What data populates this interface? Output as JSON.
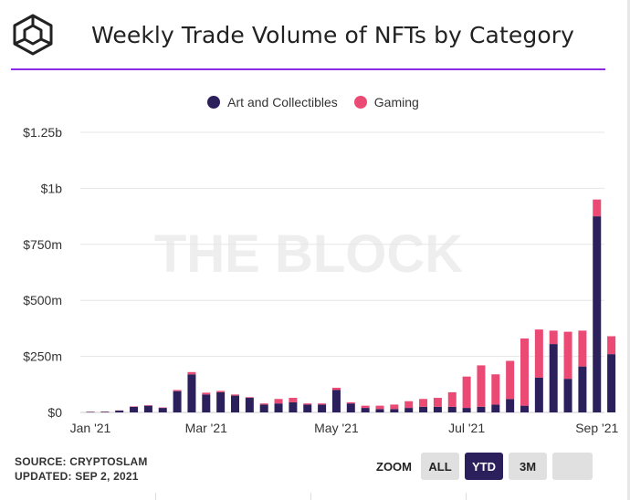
{
  "header": {
    "title": "Weekly Trade Volume of NFTs by Category"
  },
  "colors": {
    "art": "#2b1f5c",
    "gaming": "#ea4a74",
    "rule": "#8a2be2"
  },
  "legend": [
    {
      "label": "Art and Collectibles",
      "color": "#2b1f5c"
    },
    {
      "label": "Gaming",
      "color": "#ea4a74"
    }
  ],
  "watermark": "THE BLOCK",
  "footer": {
    "source": "SOURCE: CRYPTOSLAM",
    "updated": "UPDATED: SEP 2, 2021"
  },
  "zoom": {
    "label": "ZOOM",
    "buttons": [
      {
        "label": "ALL",
        "active": false
      },
      {
        "label": "YTD",
        "active": true
      },
      {
        "label": "3M",
        "active": false
      },
      {
        "label": "",
        "active": false
      }
    ]
  },
  "chart_data": {
    "type": "bar",
    "stacked": true,
    "ylim": [
      0,
      1250
    ],
    "y_ticks": [
      {
        "value": 0,
        "label": "$0"
      },
      {
        "value": 250,
        "label": "$250m"
      },
      {
        "value": 500,
        "label": "$500m"
      },
      {
        "value": 750,
        "label": "$750m"
      },
      {
        "value": 1000,
        "label": "$1b"
      },
      {
        "value": 1250,
        "label": "$1.25b"
      }
    ],
    "x_ticks": [
      {
        "index": 0,
        "label": "Jan '21"
      },
      {
        "index": 8,
        "label": "Mar '21"
      },
      {
        "index": 17,
        "label": "May '21"
      },
      {
        "index": 26,
        "label": "Jul '21"
      },
      {
        "index": 35,
        "label": "Sep '21"
      }
    ],
    "categories": [
      "2021-01-01",
      "2021-01-08",
      "2021-01-15",
      "2021-01-22",
      "2021-01-29",
      "2021-02-05",
      "2021-02-12",
      "2021-02-19",
      "2021-02-26",
      "2021-03-05",
      "2021-03-12",
      "2021-03-19",
      "2021-03-26",
      "2021-04-02",
      "2021-04-09",
      "2021-04-16",
      "2021-04-23",
      "2021-04-30",
      "2021-05-07",
      "2021-05-14",
      "2021-05-21",
      "2021-05-28",
      "2021-06-04",
      "2021-06-11",
      "2021-06-18",
      "2021-06-25",
      "2021-07-02",
      "2021-07-09",
      "2021-07-16",
      "2021-07-23",
      "2021-07-30",
      "2021-08-06",
      "2021-08-13",
      "2021-08-20",
      "2021-08-27",
      "2021-09-03"
    ],
    "series": [
      {
        "name": "Art and Collectibles",
        "values": [
          2,
          3,
          8,
          25,
          30,
          20,
          95,
          170,
          80,
          90,
          75,
          65,
          35,
          40,
          45,
          35,
          35,
          100,
          40,
          20,
          15,
          15,
          20,
          25,
          25,
          25,
          20,
          25,
          35,
          60,
          30,
          155,
          305,
          150,
          205,
          875
        ]
      },
      {
        "name": "Gaming",
        "values": [
          1,
          1,
          1,
          2,
          2,
          2,
          5,
          10,
          8,
          6,
          5,
          3,
          5,
          20,
          20,
          5,
          5,
          10,
          5,
          10,
          15,
          20,
          30,
          35,
          40,
          65,
          140,
          185,
          135,
          170,
          300,
          215,
          60,
          210,
          160,
          75
        ]
      }
    ],
    "extra_bar": {
      "art": 260,
      "gaming": 80
    },
    "xlabel": "",
    "ylabel": "",
    "grid": true,
    "legend_position": "top"
  }
}
